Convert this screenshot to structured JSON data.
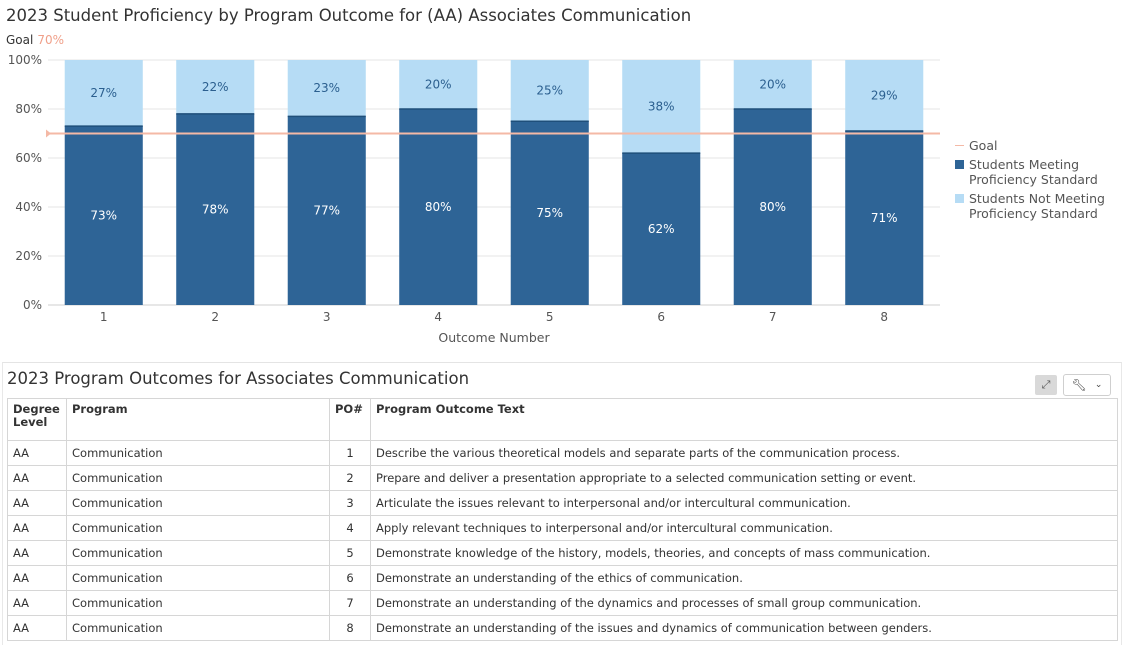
{
  "chart_title": "2023 Student Proficiency by Program Outcome for (AA) Associates Communication",
  "goal_label": "Goal",
  "goal_value_text": "70%",
  "colors": {
    "meeting": "#2e6496",
    "not_meeting": "#b6dcf5",
    "goal": "#f4b9a6"
  },
  "chart_data": {
    "type": "bar",
    "stacked": true,
    "categories": [
      "1",
      "2",
      "3",
      "4",
      "5",
      "6",
      "7",
      "8"
    ],
    "series": [
      {
        "name": "Students Meeting Proficiency Standard",
        "values": [
          73,
          78,
          77,
          80,
          75,
          62,
          80,
          71
        ],
        "labels": [
          "73%",
          "78%",
          "77%",
          "80%",
          "75%",
          "62%",
          "80%",
          "71%"
        ]
      },
      {
        "name": "Students Not Meeting Proficiency Standard",
        "values": [
          27,
          22,
          23,
          20,
          25,
          38,
          20,
          29
        ],
        "labels": [
          "27%",
          "22%",
          "23%",
          "20%",
          "25%",
          "38%",
          "20%",
          "29%"
        ]
      }
    ],
    "goal": 70,
    "goal_name": "Goal",
    "xlabel": "Outcome Number",
    "ylabel": "",
    "ylim": [
      0,
      100
    ],
    "yticks": [
      "0%",
      "20%",
      "40%",
      "60%",
      "80%",
      "100%"
    ],
    "grid": true,
    "legend": "right"
  },
  "table": {
    "title": "2023 Program Outcomes for Associates Communication",
    "headers": [
      "Degree Level",
      "Program",
      "PO#",
      "Program Outcome Text"
    ],
    "rows": [
      [
        "AA",
        "Communication",
        "1",
        "Describe the various theoretical models and separate parts of the communication process."
      ],
      [
        "AA",
        "Communication",
        "2",
        "Prepare and deliver a presentation appropriate to a selected communication setting or event."
      ],
      [
        "AA",
        "Communication",
        "3",
        "Articulate the issues relevant to interpersonal and/or intercultural communication."
      ],
      [
        "AA",
        "Communication",
        "4",
        "Apply relevant techniques to interpersonal and/or intercultural communication."
      ],
      [
        "AA",
        "Communication",
        "5",
        "Demonstrate knowledge of the history, models, theories, and concepts of mass communication."
      ],
      [
        "AA",
        "Communication",
        "6",
        "Demonstrate an understanding of the ethics of communication."
      ],
      [
        "AA",
        "Communication",
        "7",
        "Demonstrate an understanding of the dynamics and processes of small group communication."
      ],
      [
        "AA",
        "Communication",
        "8",
        "Demonstrate an understanding of the issues and dynamics of communication between genders."
      ]
    ]
  },
  "icons": {
    "expand": "expand-icon",
    "wrench": "wrench-icon",
    "chevron": "chevron-down-icon"
  }
}
